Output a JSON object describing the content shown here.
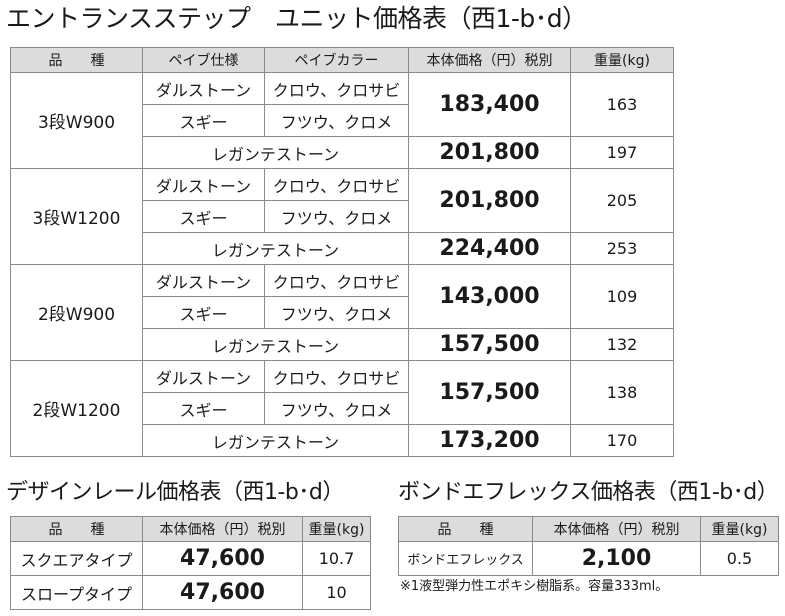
{
  "main": {
    "title": "エントランスステップ　ユニット価格表（西1-b･d）",
    "headers": {
      "kind": "品　　種",
      "pipe_spec": "ペイブ仕様",
      "pipe_color": "ペイブカラー",
      "price": "本体価格（円）税別",
      "weight": "重量(kg)"
    },
    "groups": [
      {
        "kind": "3段W900",
        "rows": [
          {
            "spec": "ダルストーン",
            "color": "クロウ、クロサビ"
          },
          {
            "spec": "スギー",
            "color": "フツウ、クロメ"
          }
        ],
        "price": "183,400",
        "weight": "163",
        "legant": {
          "spec": "レガンテストーン",
          "price": "201,800",
          "weight": "197"
        }
      },
      {
        "kind": "3段W1200",
        "rows": [
          {
            "spec": "ダルストーン",
            "color": "クロウ、クロサビ"
          },
          {
            "spec": "スギー",
            "color": "フツウ、クロメ"
          }
        ],
        "price": "201,800",
        "weight": "205",
        "legant": {
          "spec": "レガンテストーン",
          "price": "224,400",
          "weight": "253"
        }
      },
      {
        "kind": "2段W900",
        "rows": [
          {
            "spec": "ダルストーン",
            "color": "クロウ、クロサビ"
          },
          {
            "spec": "スギー",
            "color": "フツウ、クロメ"
          }
        ],
        "price": "143,000",
        "weight": "109",
        "legant": {
          "spec": "レガンテストーン",
          "price": "157,500",
          "weight": "132"
        }
      },
      {
        "kind": "2段W1200",
        "rows": [
          {
            "spec": "ダルストーン",
            "color": "クロウ、クロサビ"
          },
          {
            "spec": "スギー",
            "color": "フツウ、クロメ"
          }
        ],
        "price": "157,500",
        "weight": "138",
        "legant": {
          "spec": "レガンテストーン",
          "price": "173,200",
          "weight": "170"
        }
      }
    ]
  },
  "rail": {
    "title": "デザインレール価格表（西1-b･d）",
    "headers": {
      "kind": "品　　種",
      "price": "本体価格（円）税別",
      "weight": "重量(kg)"
    },
    "rows": [
      {
        "kind": "スクエアタイプ",
        "price": "47,600",
        "weight": "10.7"
      },
      {
        "kind": "スロープタイプ",
        "price": "47,600",
        "weight": "10"
      }
    ]
  },
  "bond": {
    "title": "ボンドエフレックス価格表（西1-b･d）",
    "headers": {
      "kind": "品　　種",
      "price": "本体価格（円）税別",
      "weight": "重量(kg)"
    },
    "rows": [
      {
        "kind": "ボンドエフレックス",
        "price": "2,100",
        "weight": "0.5"
      }
    ],
    "note": "※1液型弾力性エポキシ樹脂系。容量333ml。"
  }
}
